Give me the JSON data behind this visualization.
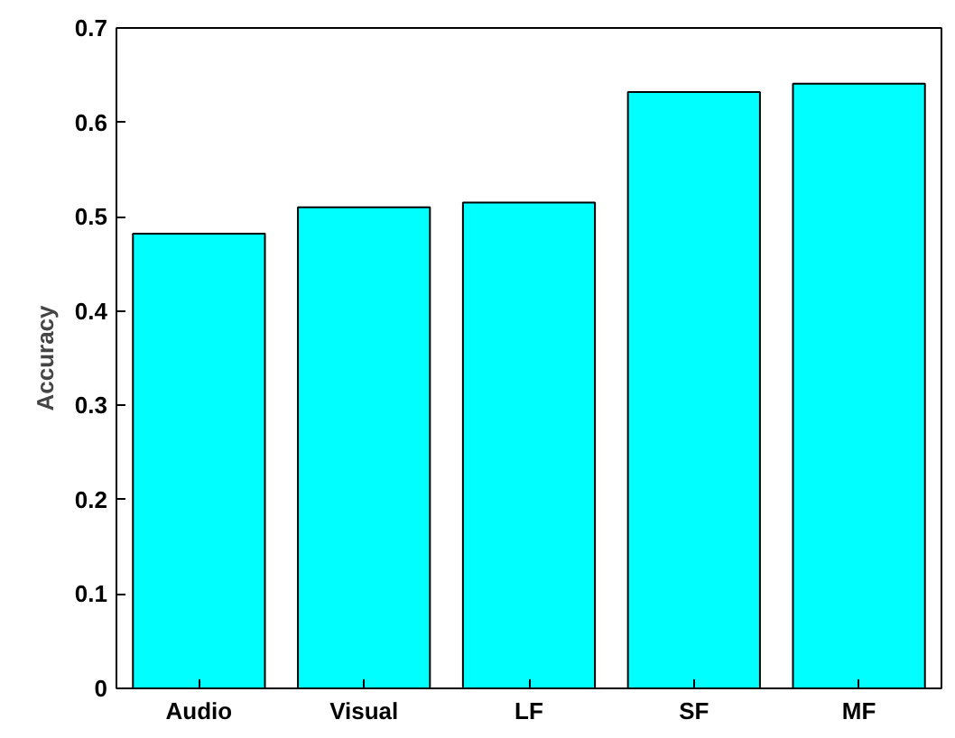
{
  "chart_data": {
    "type": "bar",
    "ylabel": "Accuracy",
    "categories": [
      "Audio",
      "Visual",
      "LF",
      "SF",
      "MF"
    ],
    "values": [
      0.482,
      0.51,
      0.515,
      0.632,
      0.641
    ],
    "color": "#00ffff",
    "ylim": [
      0,
      0.7
    ],
    "yticks": [
      0,
      0.1,
      0.2,
      0.3,
      0.4,
      0.5,
      0.6,
      0.7
    ],
    "grid": false
  }
}
